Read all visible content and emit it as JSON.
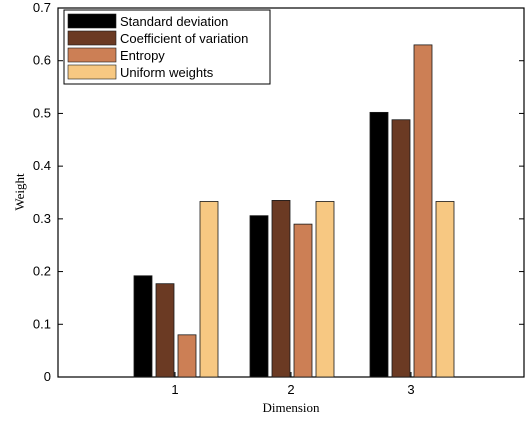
{
  "chart_data": {
    "type": "bar",
    "categories": [
      "1",
      "2",
      "3"
    ],
    "series": [
      {
        "name": "Standard deviation",
        "values": [
          0.192,
          0.306,
          0.502
        ],
        "color": "#000000"
      },
      {
        "name": "Coefficient of variation",
        "values": [
          0.177,
          0.335,
          0.488
        ],
        "color": "#6b3a23"
      },
      {
        "name": "Entropy",
        "values": [
          0.08,
          0.29,
          0.63
        ],
        "color": "#cc7f55"
      },
      {
        "name": "Uniform weights",
        "values": [
          0.333,
          0.333,
          0.333
        ],
        "color": "#f7c882"
      }
    ],
    "xlabel": "Dimension",
    "ylabel": "Weight",
    "ylim": [
      0,
      0.7
    ],
    "yticks": [
      "0",
      "0.1",
      "0.2",
      "0.3",
      "0.4",
      "0.5",
      "0.6",
      "0.7"
    ],
    "grid": false,
    "legend_position": "top-left"
  }
}
